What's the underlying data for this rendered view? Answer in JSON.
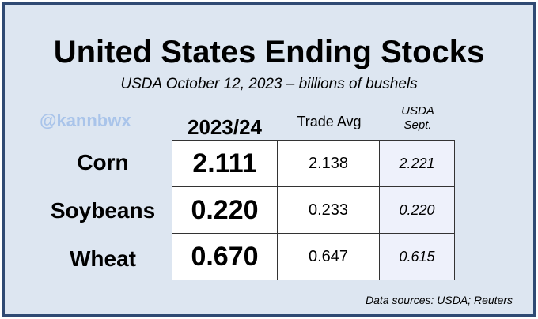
{
  "chart_data": {
    "type": "table",
    "title": "United States Ending Stocks",
    "subtitle": "USDA October 12, 2023 – billions of bushels",
    "columns": [
      "2023/24",
      "Trade Avg",
      "USDA Sept."
    ],
    "rows": [
      {
        "label": "Corn",
        "values": [
          "2.111",
          "2.138",
          "2.221"
        ]
      },
      {
        "label": "Soybeans",
        "values": [
          "0.220",
          "0.233",
          "0.220"
        ]
      },
      {
        "label": "Wheat",
        "values": [
          "0.670",
          "0.647",
          "0.615"
        ]
      }
    ],
    "watermark": "@kannbwx",
    "source": "Data sources: USDA; Reuters"
  },
  "colors": {
    "frame_border": "#2f4a73",
    "background": "#dde6f1",
    "usda_column_fill": "#eef1fb",
    "watermark": "#a9c4ea"
  }
}
